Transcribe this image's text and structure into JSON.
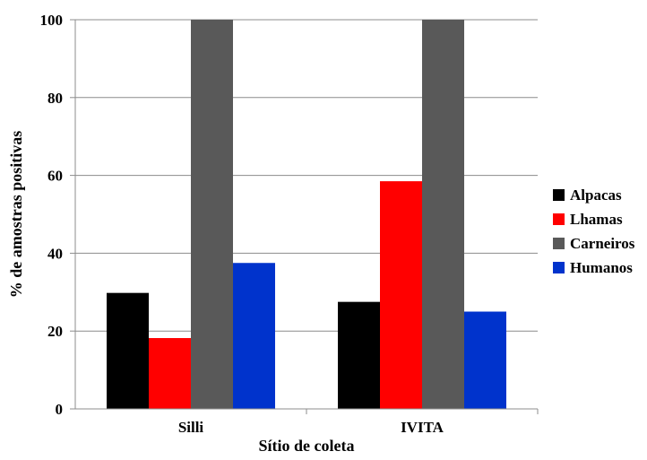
{
  "chart_data": {
    "type": "bar",
    "categories": [
      "Silli",
      "IVITA"
    ],
    "series": [
      {
        "name": "Alpacas",
        "values": [
          29.8,
          27.5
        ],
        "color": "#000000"
      },
      {
        "name": "Lhamas",
        "values": [
          18.2,
          58.5
        ],
        "color": "#ff0000"
      },
      {
        "name": "Carneiros",
        "values": [
          100,
          100
        ],
        "color": "#595959"
      },
      {
        "name": "Humanos",
        "values": [
          37.5,
          25.0
        ],
        "color": "#0033cc"
      }
    ],
    "title": "",
    "xlabel": "Sítio de coleta",
    "ylabel": "% de amostras positivas",
    "ylim": [
      0,
      100
    ],
    "yticks": [
      "0",
      "20",
      "40",
      "60",
      "80",
      "100"
    ],
    "grid": true,
    "legend_position": "right"
  }
}
